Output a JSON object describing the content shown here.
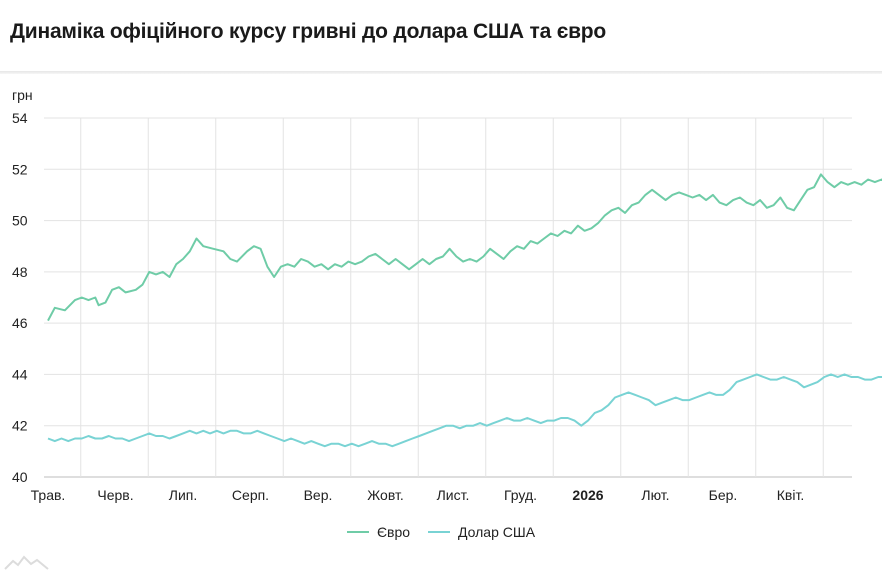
{
  "header": {
    "title": "Динаміка офіційного курсу гривні до долара США та євро"
  },
  "chart_data": {
    "type": "line",
    "ylabel": "грн",
    "ylim": [
      40,
      54
    ],
    "yticks": [
      40,
      42,
      44,
      46,
      48,
      50,
      52,
      54
    ],
    "xlim": [
      0,
      12.4
    ],
    "x_ticks": [
      {
        "label": "Трав.",
        "x": 0,
        "bold": false
      },
      {
        "label": "Черв.",
        "x": 1,
        "bold": false
      },
      {
        "label": "Лип.",
        "x": 2,
        "bold": false
      },
      {
        "label": "Серп.",
        "x": 3,
        "bold": false
      },
      {
        "label": "Вер.",
        "x": 4,
        "bold": false
      },
      {
        "label": "Жовт.",
        "x": 5,
        "bold": false
      },
      {
        "label": "Лист.",
        "x": 6,
        "bold": false
      },
      {
        "label": "Груд.",
        "x": 7,
        "bold": false
      },
      {
        "label": "2026",
        "x": 8,
        "bold": true
      },
      {
        "label": "Лют.",
        "x": 9,
        "bold": false
      },
      {
        "label": "Бер.",
        "x": 10,
        "bold": false
      },
      {
        "label": "Квіт.",
        "x": 11,
        "bold": false
      }
    ],
    "grid": true,
    "legend": "bottom-center",
    "series": [
      {
        "name": "Євро",
        "color": "#6fcca7",
        "points": [
          [
            0.0,
            46.1
          ],
          [
            0.1,
            46.6
          ],
          [
            0.25,
            46.5
          ],
          [
            0.4,
            46.9
          ],
          [
            0.5,
            47.0
          ],
          [
            0.6,
            46.9
          ],
          [
            0.7,
            47.0
          ],
          [
            0.75,
            46.7
          ],
          [
            0.85,
            46.8
          ],
          [
            0.95,
            47.3
          ],
          [
            1.05,
            47.4
          ],
          [
            1.15,
            47.2
          ],
          [
            1.3,
            47.3
          ],
          [
            1.4,
            47.5
          ],
          [
            1.5,
            48.0
          ],
          [
            1.6,
            47.9
          ],
          [
            1.7,
            48.0
          ],
          [
            1.8,
            47.8
          ],
          [
            1.9,
            48.3
          ],
          [
            2.0,
            48.5
          ],
          [
            2.1,
            48.8
          ],
          [
            2.2,
            49.3
          ],
          [
            2.3,
            49.0
          ],
          [
            2.45,
            48.9
          ],
          [
            2.6,
            48.8
          ],
          [
            2.7,
            48.5
          ],
          [
            2.8,
            48.4
          ],
          [
            2.95,
            48.8
          ],
          [
            3.05,
            49.0
          ],
          [
            3.15,
            48.9
          ],
          [
            3.25,
            48.2
          ],
          [
            3.35,
            47.8
          ],
          [
            3.45,
            48.2
          ],
          [
            3.55,
            48.3
          ],
          [
            3.65,
            48.2
          ],
          [
            3.75,
            48.5
          ],
          [
            3.85,
            48.4
          ],
          [
            3.95,
            48.2
          ],
          [
            4.05,
            48.3
          ],
          [
            4.15,
            48.1
          ],
          [
            4.25,
            48.3
          ],
          [
            4.35,
            48.2
          ],
          [
            4.45,
            48.4
          ],
          [
            4.55,
            48.3
          ],
          [
            4.65,
            48.4
          ],
          [
            4.75,
            48.6
          ],
          [
            4.85,
            48.7
          ],
          [
            4.95,
            48.5
          ],
          [
            5.05,
            48.3
          ],
          [
            5.15,
            48.5
          ],
          [
            5.25,
            48.3
          ],
          [
            5.35,
            48.1
          ],
          [
            5.45,
            48.3
          ],
          [
            5.55,
            48.5
          ],
          [
            5.65,
            48.3
          ],
          [
            5.75,
            48.5
          ],
          [
            5.85,
            48.6
          ],
          [
            5.95,
            48.9
          ],
          [
            6.05,
            48.6
          ],
          [
            6.15,
            48.4
          ],
          [
            6.25,
            48.5
          ],
          [
            6.35,
            48.4
          ],
          [
            6.45,
            48.6
          ],
          [
            6.55,
            48.9
          ],
          [
            6.65,
            48.7
          ],
          [
            6.75,
            48.5
          ],
          [
            6.85,
            48.8
          ],
          [
            6.95,
            49.0
          ],
          [
            7.05,
            48.9
          ],
          [
            7.15,
            49.2
          ],
          [
            7.25,
            49.1
          ],
          [
            7.35,
            49.3
          ],
          [
            7.45,
            49.5
          ],
          [
            7.55,
            49.4
          ],
          [
            7.65,
            49.6
          ],
          [
            7.75,
            49.5
          ],
          [
            7.85,
            49.8
          ],
          [
            7.95,
            49.6
          ],
          [
            8.05,
            49.7
          ],
          [
            8.15,
            49.9
          ],
          [
            8.25,
            50.2
          ],
          [
            8.35,
            50.4
          ],
          [
            8.45,
            50.5
          ],
          [
            8.55,
            50.3
          ],
          [
            8.65,
            50.6
          ],
          [
            8.75,
            50.7
          ],
          [
            8.85,
            51.0
          ],
          [
            8.95,
            51.2
          ],
          [
            9.05,
            51.0
          ],
          [
            9.15,
            50.8
          ],
          [
            9.25,
            51.0
          ],
          [
            9.35,
            51.1
          ],
          [
            9.45,
            51.0
          ],
          [
            9.55,
            50.9
          ],
          [
            9.65,
            51.0
          ],
          [
            9.75,
            50.8
          ],
          [
            9.85,
            51.0
          ],
          [
            9.95,
            50.7
          ],
          [
            10.05,
            50.6
          ],
          [
            10.15,
            50.8
          ],
          [
            10.25,
            50.9
          ],
          [
            10.35,
            50.7
          ],
          [
            10.45,
            50.6
          ],
          [
            10.55,
            50.8
          ],
          [
            10.65,
            50.5
          ],
          [
            10.75,
            50.6
          ],
          [
            10.85,
            50.9
          ],
          [
            10.95,
            50.5
          ],
          [
            11.05,
            50.4
          ],
          [
            11.15,
            50.8
          ],
          [
            11.25,
            51.2
          ],
          [
            11.35,
            51.3
          ],
          [
            11.45,
            51.8
          ],
          [
            11.55,
            51.5
          ],
          [
            11.65,
            51.3
          ],
          [
            11.75,
            51.5
          ],
          [
            11.85,
            51.4
          ],
          [
            11.95,
            51.5
          ],
          [
            12.05,
            51.4
          ],
          [
            12.15,
            51.6
          ],
          [
            12.25,
            51.5
          ],
          [
            12.35,
            51.6
          ],
          [
            12.4,
            51.5
          ]
        ]
      },
      {
        "name": "Долар США",
        "color": "#79d3d4",
        "points": [
          [
            0.0,
            41.5
          ],
          [
            0.1,
            41.4
          ],
          [
            0.2,
            41.5
          ],
          [
            0.3,
            41.4
          ],
          [
            0.4,
            41.5
          ],
          [
            0.5,
            41.5
          ],
          [
            0.6,
            41.6
          ],
          [
            0.7,
            41.5
          ],
          [
            0.8,
            41.5
          ],
          [
            0.9,
            41.6
          ],
          [
            1.0,
            41.5
          ],
          [
            1.1,
            41.5
          ],
          [
            1.2,
            41.4
          ],
          [
            1.3,
            41.5
          ],
          [
            1.4,
            41.6
          ],
          [
            1.5,
            41.7
          ],
          [
            1.6,
            41.6
          ],
          [
            1.7,
            41.6
          ],
          [
            1.8,
            41.5
          ],
          [
            1.9,
            41.6
          ],
          [
            2.0,
            41.7
          ],
          [
            2.1,
            41.8
          ],
          [
            2.2,
            41.7
          ],
          [
            2.3,
            41.8
          ],
          [
            2.4,
            41.7
          ],
          [
            2.5,
            41.8
          ],
          [
            2.6,
            41.7
          ],
          [
            2.7,
            41.8
          ],
          [
            2.8,
            41.8
          ],
          [
            2.9,
            41.7
          ],
          [
            3.0,
            41.7
          ],
          [
            3.1,
            41.8
          ],
          [
            3.2,
            41.7
          ],
          [
            3.3,
            41.6
          ],
          [
            3.4,
            41.5
          ],
          [
            3.5,
            41.4
          ],
          [
            3.6,
            41.5
          ],
          [
            3.7,
            41.4
          ],
          [
            3.8,
            41.3
          ],
          [
            3.9,
            41.4
          ],
          [
            4.0,
            41.3
          ],
          [
            4.1,
            41.2
          ],
          [
            4.2,
            41.3
          ],
          [
            4.3,
            41.3
          ],
          [
            4.4,
            41.2
          ],
          [
            4.5,
            41.3
          ],
          [
            4.6,
            41.2
          ],
          [
            4.7,
            41.3
          ],
          [
            4.8,
            41.4
          ],
          [
            4.9,
            41.3
          ],
          [
            5.0,
            41.3
          ],
          [
            5.1,
            41.2
          ],
          [
            5.2,
            41.3
          ],
          [
            5.3,
            41.4
          ],
          [
            5.4,
            41.5
          ],
          [
            5.5,
            41.6
          ],
          [
            5.6,
            41.7
          ],
          [
            5.7,
            41.8
          ],
          [
            5.8,
            41.9
          ],
          [
            5.9,
            42.0
          ],
          [
            6.0,
            42.0
          ],
          [
            6.1,
            41.9
          ],
          [
            6.2,
            42.0
          ],
          [
            6.3,
            42.0
          ],
          [
            6.4,
            42.1
          ],
          [
            6.5,
            42.0
          ],
          [
            6.6,
            42.1
          ],
          [
            6.7,
            42.2
          ],
          [
            6.8,
            42.3
          ],
          [
            6.9,
            42.2
          ],
          [
            7.0,
            42.2
          ],
          [
            7.1,
            42.3
          ],
          [
            7.2,
            42.2
          ],
          [
            7.3,
            42.1
          ],
          [
            7.4,
            42.2
          ],
          [
            7.5,
            42.2
          ],
          [
            7.6,
            42.3
          ],
          [
            7.7,
            42.3
          ],
          [
            7.8,
            42.2
          ],
          [
            7.9,
            42.0
          ],
          [
            8.0,
            42.2
          ],
          [
            8.1,
            42.5
          ],
          [
            8.2,
            42.6
          ],
          [
            8.3,
            42.8
          ],
          [
            8.4,
            43.1
          ],
          [
            8.5,
            43.2
          ],
          [
            8.6,
            43.3
          ],
          [
            8.7,
            43.2
          ],
          [
            8.8,
            43.1
          ],
          [
            8.9,
            43.0
          ],
          [
            9.0,
            42.8
          ],
          [
            9.1,
            42.9
          ],
          [
            9.2,
            43.0
          ],
          [
            9.3,
            43.1
          ],
          [
            9.4,
            43.0
          ],
          [
            9.5,
            43.0
          ],
          [
            9.6,
            43.1
          ],
          [
            9.7,
            43.2
          ],
          [
            9.8,
            43.3
          ],
          [
            9.9,
            43.2
          ],
          [
            10.0,
            43.2
          ],
          [
            10.1,
            43.4
          ],
          [
            10.2,
            43.7
          ],
          [
            10.3,
            43.8
          ],
          [
            10.4,
            43.9
          ],
          [
            10.5,
            44.0
          ],
          [
            10.6,
            43.9
          ],
          [
            10.7,
            43.8
          ],
          [
            10.8,
            43.8
          ],
          [
            10.9,
            43.9
          ],
          [
            11.0,
            43.8
          ],
          [
            11.1,
            43.7
          ],
          [
            11.2,
            43.5
          ],
          [
            11.3,
            43.6
          ],
          [
            11.4,
            43.7
          ],
          [
            11.5,
            43.9
          ],
          [
            11.6,
            44.0
          ],
          [
            11.7,
            43.9
          ],
          [
            11.8,
            44.0
          ],
          [
            11.9,
            43.9
          ],
          [
            12.0,
            43.9
          ],
          [
            12.1,
            43.8
          ],
          [
            12.2,
            43.8
          ],
          [
            12.3,
            43.9
          ],
          [
            12.4,
            43.9
          ]
        ]
      }
    ]
  }
}
